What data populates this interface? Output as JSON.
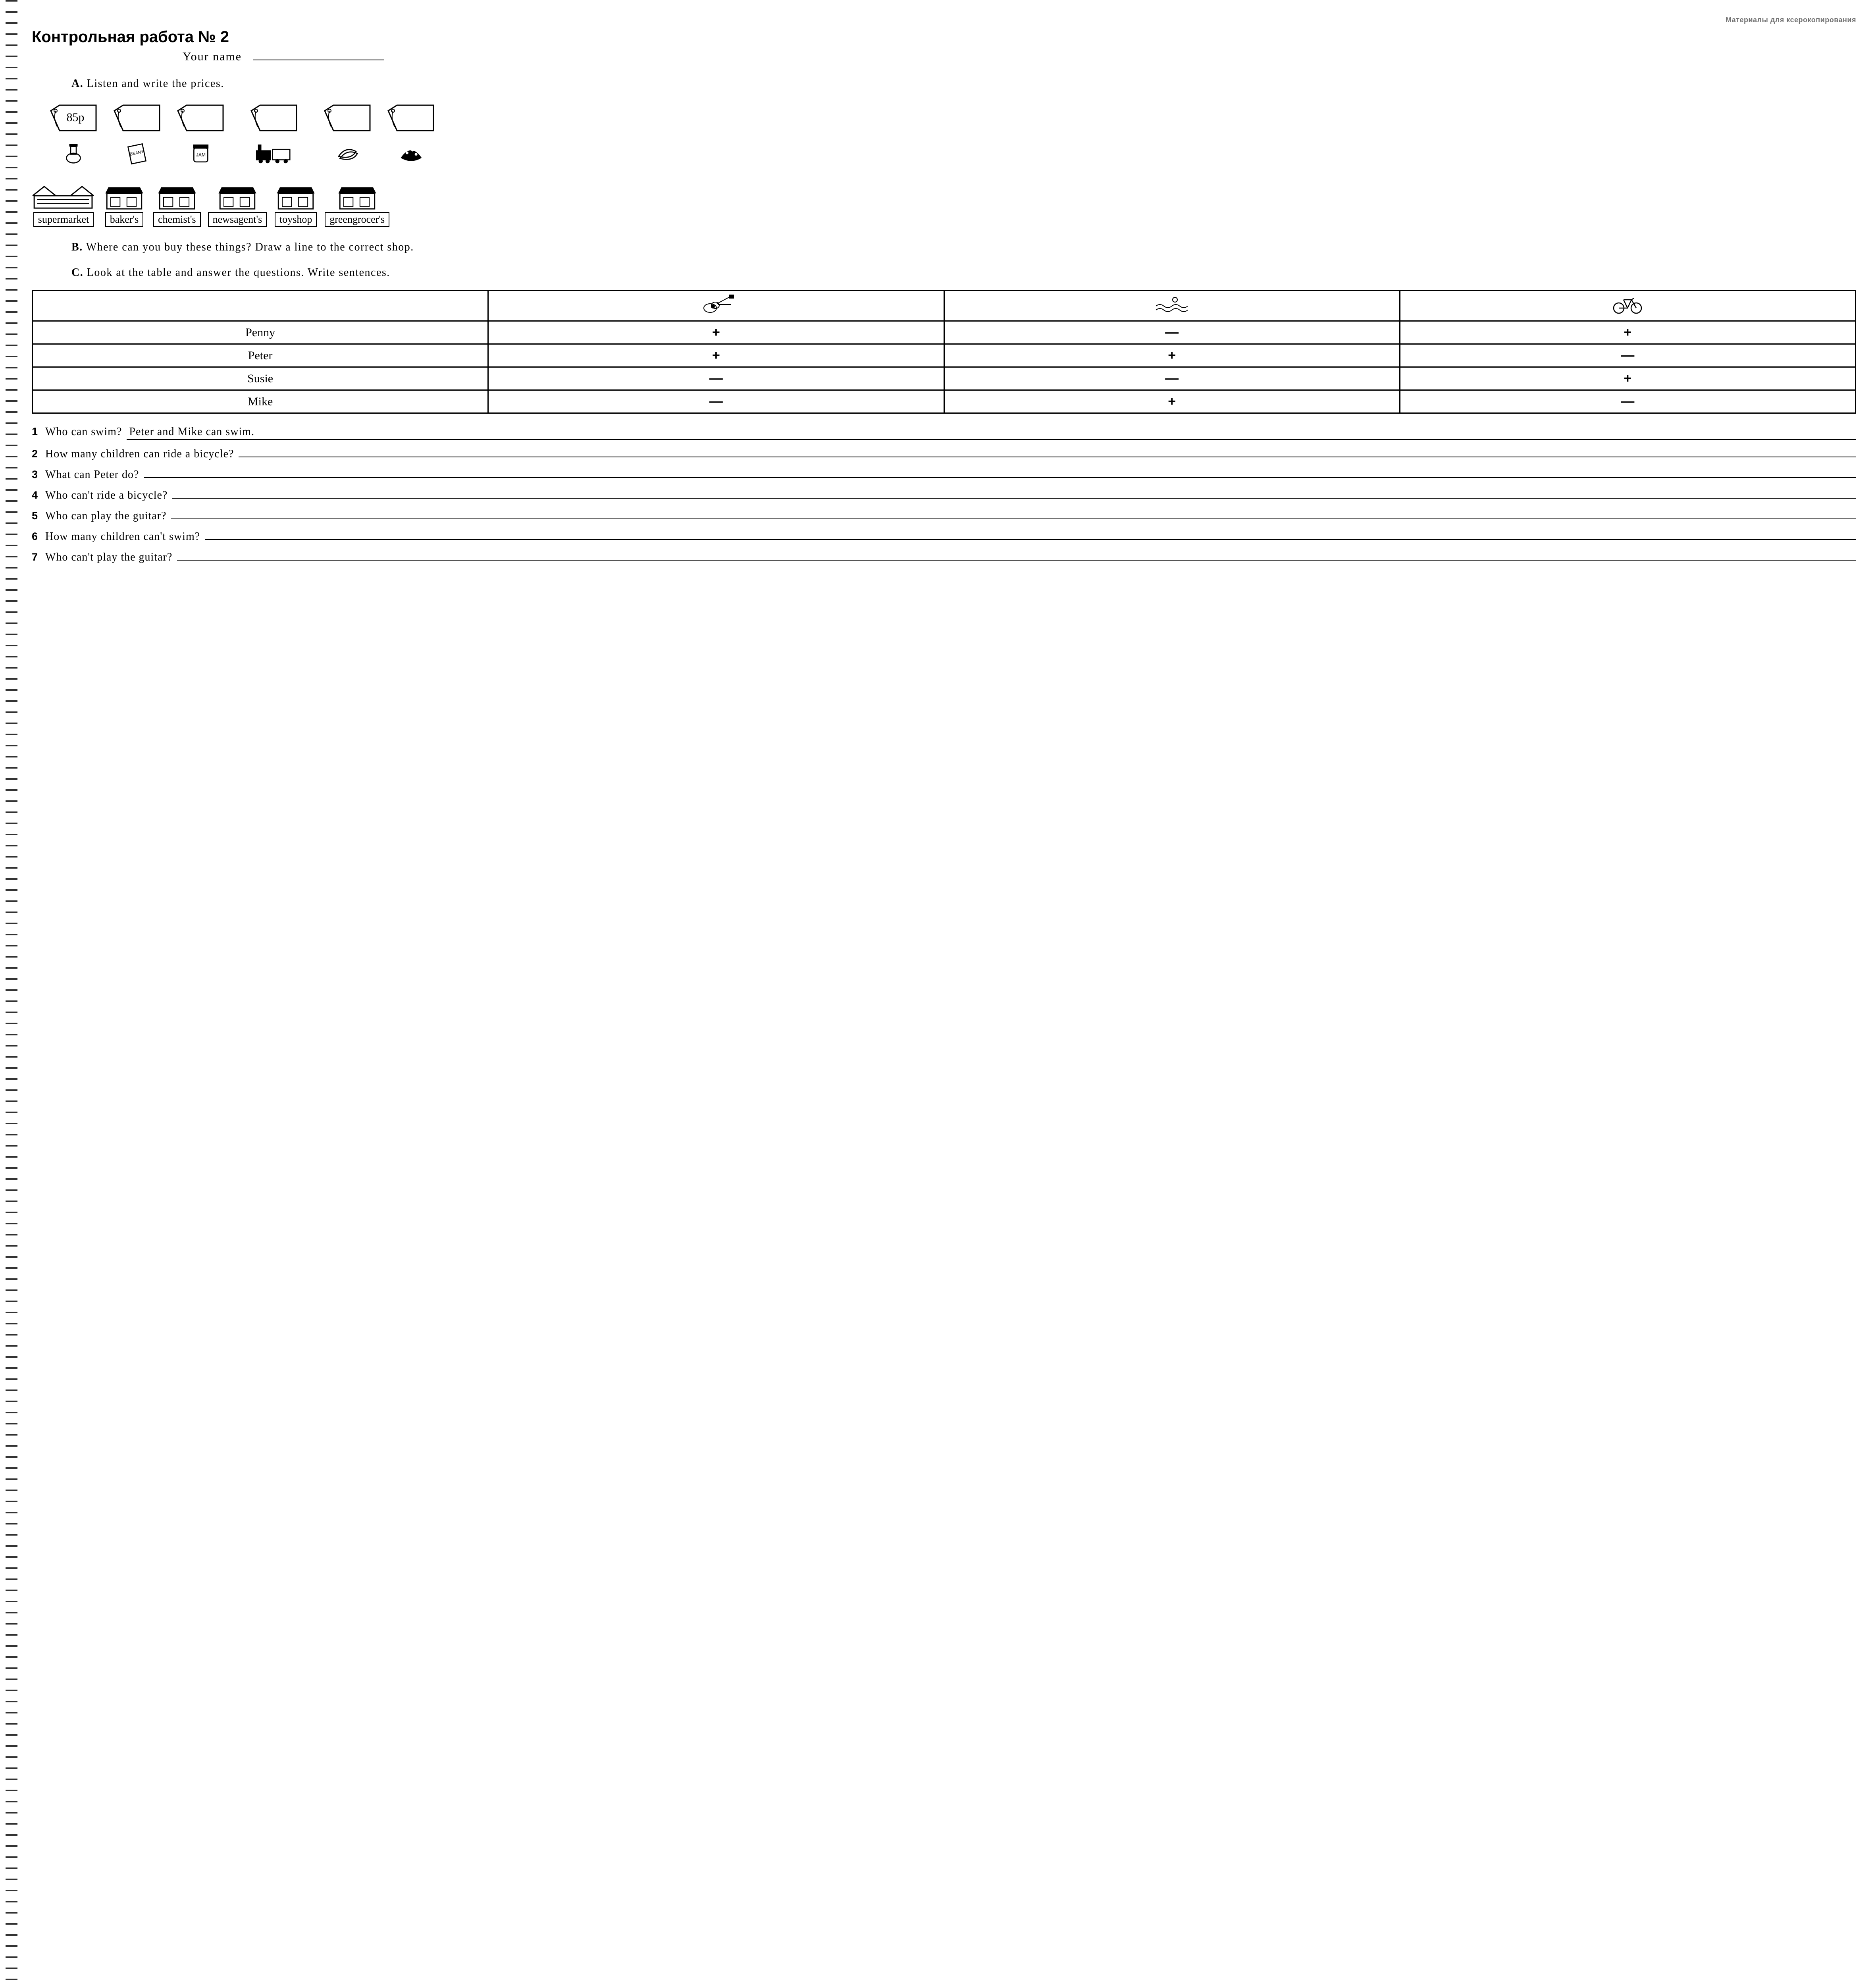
{
  "header_note": "Материалы для ксерокопирования",
  "title": "Контрольная работа № 2",
  "name_label": "Your  name",
  "sectionA": {
    "lead": "A.",
    "text": "Listen  and  write  the  prices."
  },
  "sectionB": {
    "lead": "B.",
    "text": "Where  can  you  buy  these  things?  Draw  a  line  to  the correct  shop."
  },
  "sectionC": {
    "lead": "C.",
    "text": "Look  at  the  table  and  answer  the  questions.  Write sentences."
  },
  "tags": [
    {
      "price": "85p",
      "product": "sauce"
    },
    {
      "price": "",
      "product": "beans"
    },
    {
      "price": "",
      "product": "jam"
    },
    {
      "price": "",
      "product": "train"
    },
    {
      "price": "",
      "product": "bananas"
    },
    {
      "price": "",
      "product": "cake"
    }
  ],
  "shops": [
    {
      "label": "supermarket"
    },
    {
      "label": "baker's"
    },
    {
      "label": "chemist's"
    },
    {
      "label": "newsagent's"
    },
    {
      "label": "toyshop"
    },
    {
      "label": "greengrocer's"
    }
  ],
  "table": {
    "activities": [
      "guitar",
      "swim",
      "bicycle"
    ],
    "rows": [
      {
        "name": "Penny",
        "marks": [
          "+",
          "—",
          "+"
        ]
      },
      {
        "name": "Peter",
        "marks": [
          "+",
          "+",
          "—"
        ]
      },
      {
        "name": "Susie",
        "marks": [
          "—",
          "—",
          "+"
        ]
      },
      {
        "name": "Mike",
        "marks": [
          "—",
          "+",
          "—"
        ]
      }
    ]
  },
  "questions": [
    {
      "n": "1",
      "q": "Who  can  swim?",
      "a": "Peter  and  Mike  can  swim."
    },
    {
      "n": "2",
      "q": "How  many  children  can  ride  a  bicycle?",
      "a": ""
    },
    {
      "n": "3",
      "q": "What  can  Peter  do?",
      "a": ""
    },
    {
      "n": "4",
      "q": "Who  can't  ride  a  bicycle?",
      "a": ""
    },
    {
      "n": "5",
      "q": "Who  can  play  the  guitar?",
      "a": ""
    },
    {
      "n": "6",
      "q": "How  many  children  can't  swim?",
      "a": ""
    },
    {
      "n": "7",
      "q": "Who  can't  play  the  guitar?",
      "a": ""
    }
  ],
  "colors": {
    "ink": "#000000",
    "paper": "#ffffff"
  }
}
